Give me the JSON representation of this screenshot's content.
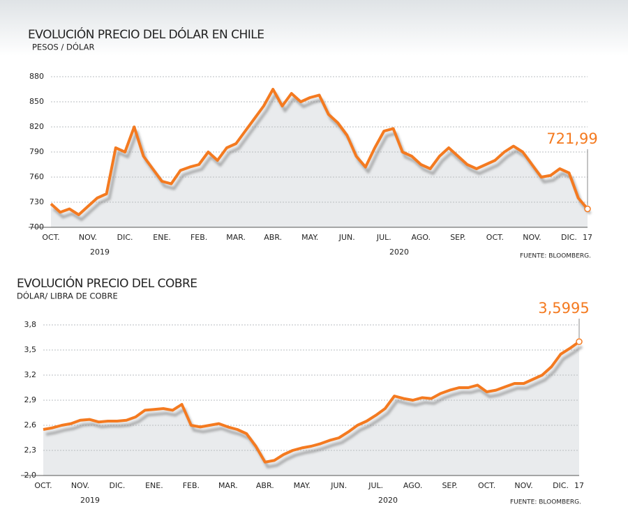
{
  "chart_data": [
    {
      "type": "line",
      "title": "EVOLUCIÓN PRECIO DEL DÓLAR EN CHILE",
      "subtitle": "PESOS / DÓLAR",
      "categories": [
        "OCT.",
        null,
        null,
        null,
        "NOV.",
        null,
        null,
        null,
        "DIC.",
        null,
        null,
        null,
        "ENE.",
        null,
        null,
        null,
        "FEB.",
        null,
        null,
        null,
        "MAR.",
        null,
        null,
        null,
        "ABR.",
        null,
        null,
        null,
        "MAY.",
        null,
        null,
        null,
        "JUN.",
        null,
        null,
        null,
        "JUL.",
        null,
        null,
        null,
        "AGO.",
        null,
        null,
        null,
        "SEP.",
        null,
        null,
        null,
        "OCT.",
        null,
        null,
        null,
        "NOV.",
        null,
        null,
        null,
        "DIC.",
        null,
        "17"
      ],
      "values": [
        728,
        718,
        722,
        715,
        725,
        735,
        740,
        795,
        790,
        820,
        785,
        770,
        755,
        752,
        768,
        772,
        775,
        790,
        780,
        795,
        800,
        815,
        830,
        845,
        865,
        845,
        860,
        850,
        855,
        858,
        835,
        825,
        810,
        785,
        772,
        795,
        815,
        818,
        790,
        785,
        775,
        770,
        785,
        795,
        785,
        775,
        770,
        775,
        780,
        790,
        797,
        790,
        775,
        760,
        762,
        770,
        765,
        735,
        721.99
      ],
      "value_labels": [
        null,
        null,
        null,
        null,
        null,
        null,
        null,
        null,
        null,
        null,
        null,
        null,
        null,
        null,
        null,
        null,
        null,
        null,
        null,
        null,
        null,
        null,
        null,
        null,
        null,
        null,
        null,
        null,
        null,
        null,
        null,
        null,
        null,
        null,
        null,
        null,
        null,
        null,
        null,
        null,
        null,
        null,
        null,
        null,
        null,
        null,
        null,
        null,
        null,
        null,
        null,
        null,
        null,
        null,
        null,
        null,
        null,
        null,
        "721,99"
      ],
      "color": "#f47a20",
      "ylim": [
        700,
        880
      ],
      "yticks": [
        700,
        730,
        760,
        790,
        820,
        850,
        880
      ],
      "grid": true,
      "year_labels": [
        "2019",
        "2020"
      ],
      "source": "FUENTE: BLOOMBERG."
    },
    {
      "type": "line",
      "title": "EVOLUCIÓN PRECIO DEL COBRE",
      "subtitle": "DÓLAR/ LIBRA DE COBRE",
      "categories": [
        "OCT.",
        null,
        null,
        null,
        "NOV.",
        null,
        null,
        null,
        "DIC.",
        null,
        null,
        null,
        "ENE.",
        null,
        null,
        null,
        "FEB.",
        null,
        null,
        null,
        "MAR.",
        null,
        null,
        null,
        "ABR.",
        null,
        null,
        null,
        "MAY.",
        null,
        null,
        null,
        "JUN.",
        null,
        null,
        null,
        "JUL.",
        null,
        null,
        null,
        "AGO.",
        null,
        null,
        null,
        "SEP.",
        null,
        null,
        null,
        "OCT.",
        null,
        null,
        null,
        "NOV.",
        null,
        null,
        null,
        "DIC.",
        null,
        "17"
      ],
      "values": [
        2.55,
        2.57,
        2.6,
        2.62,
        2.66,
        2.67,
        2.64,
        2.65,
        2.65,
        2.66,
        2.7,
        2.78,
        2.79,
        2.8,
        2.78,
        2.85,
        2.6,
        2.58,
        2.6,
        2.62,
        2.58,
        2.55,
        2.5,
        2.35,
        2.16,
        2.18,
        2.25,
        2.3,
        2.33,
        2.35,
        2.38,
        2.42,
        2.45,
        2.52,
        2.6,
        2.65,
        2.72,
        2.8,
        2.95,
        2.92,
        2.9,
        2.93,
        2.92,
        2.98,
        3.02,
        3.05,
        3.05,
        3.08,
        3.0,
        3.02,
        3.06,
        3.1,
        3.1,
        3.15,
        3.2,
        3.3,
        3.45,
        3.52,
        3.5995
      ],
      "value_labels": [
        null,
        null,
        null,
        null,
        null,
        null,
        null,
        null,
        null,
        null,
        null,
        null,
        null,
        null,
        null,
        null,
        null,
        null,
        null,
        null,
        null,
        null,
        null,
        null,
        null,
        null,
        null,
        null,
        null,
        null,
        null,
        null,
        null,
        null,
        null,
        null,
        null,
        null,
        null,
        null,
        null,
        null,
        null,
        null,
        null,
        null,
        null,
        null,
        null,
        null,
        null,
        null,
        null,
        null,
        null,
        null,
        null,
        null,
        "3,5995"
      ],
      "color": "#f47a20",
      "ylim": [
        2.0,
        3.8
      ],
      "yticks": [
        {
          "value": 2.0,
          "label": "2,0"
        },
        {
          "value": 2.3,
          "label": "2,3"
        },
        {
          "value": 2.6,
          "label": "2,6"
        },
        {
          "value": 2.9,
          "label": "2,9"
        },
        {
          "value": 3.2,
          "label": "3,2"
        },
        {
          "value": 3.5,
          "label": "3,5"
        },
        {
          "value": 3.8,
          "label": "3,8"
        }
      ],
      "grid": true,
      "year_labels": [
        "2019",
        "2020"
      ],
      "source": "FUENTE: BLOOMBERG."
    }
  ]
}
